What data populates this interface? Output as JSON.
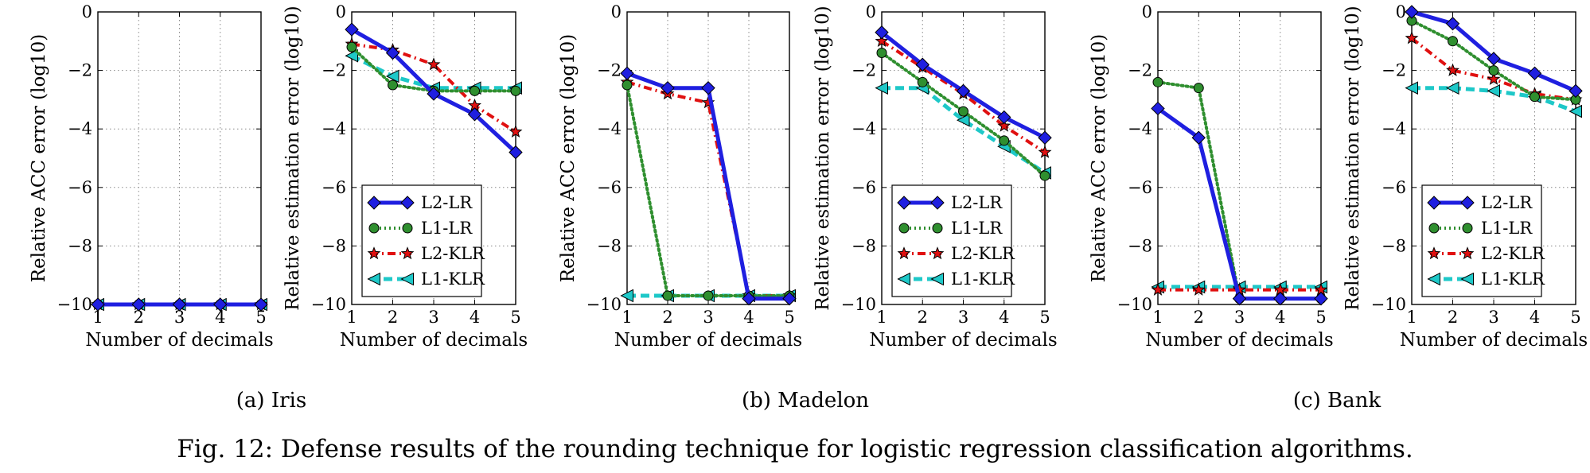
{
  "figure": {
    "caption": "Fig. 12: Defense results of the rounding technique for logistic regression classification algorithms.",
    "subcaptions": [
      "(a) Iris",
      "(b) Madelon",
      "(c) Bank"
    ]
  },
  "series_styles": [
    {
      "name": "L2-LR",
      "color": "#1f1fe0",
      "marker": "diamond",
      "dash": "solid"
    },
    {
      "name": "L1-LR",
      "color": "#2f8f2f",
      "marker": "circle",
      "dash": "dotted"
    },
    {
      "name": "L2-KLR",
      "color": "#e01010",
      "marker": "star",
      "dash": "dashdot"
    },
    {
      "name": "L1-KLR",
      "color": "#1ec8c8",
      "marker": "triangle-left",
      "dash": "dashed"
    }
  ],
  "chart_data": [
    {
      "type": "line",
      "xlabel": "Number of decimals",
      "ylabel": "Relative ACC error (log10)",
      "x": [
        1,
        2,
        3,
        4,
        5
      ],
      "xlim": [
        1,
        5
      ],
      "ylim": [
        -10,
        0
      ],
      "xticks": [
        "1",
        "2",
        "3",
        "4",
        "5"
      ],
      "yticks": [
        "0",
        "−2",
        "−4",
        "−6",
        "−8",
        "−10"
      ],
      "grid": true,
      "legend": "none",
      "series": [
        {
          "name": "L2-LR",
          "values": [
            -10,
            -10,
            -10,
            -10,
            -10
          ]
        },
        {
          "name": "L1-LR",
          "values": [
            -10,
            -10,
            -10,
            -10,
            -10
          ]
        },
        {
          "name": "L2-KLR",
          "values": [
            -10,
            -10,
            -10,
            -10,
            -10
          ]
        },
        {
          "name": "L1-KLR",
          "values": [
            -10,
            -10,
            -10,
            -10,
            -10
          ]
        }
      ]
    },
    {
      "type": "line",
      "xlabel": "Number of decimals",
      "ylabel": "Relative estimation error (log10)",
      "x": [
        1,
        2,
        3,
        4,
        5
      ],
      "xlim": [
        1,
        5
      ],
      "ylim": [
        -10,
        0
      ],
      "xticks": [
        "1",
        "2",
        "3",
        "4",
        "5"
      ],
      "yticks": [
        "0",
        "−2",
        "−4",
        "−6",
        "−8",
        "−10"
      ],
      "grid": true,
      "legend": "bottom-left",
      "series": [
        {
          "name": "L2-LR",
          "values": [
            -0.6,
            -1.4,
            -2.8,
            -3.5,
            -4.8
          ]
        },
        {
          "name": "L1-LR",
          "values": [
            -1.2,
            -2.5,
            -2.7,
            -2.7,
            -2.7
          ]
        },
        {
          "name": "L2-KLR",
          "values": [
            -1.1,
            -1.3,
            -1.8,
            -3.2,
            -4.1
          ]
        },
        {
          "name": "L1-KLR",
          "values": [
            -1.5,
            -2.2,
            -2.6,
            -2.6,
            -2.6
          ]
        }
      ]
    },
    {
      "type": "line",
      "xlabel": "Number of decimals",
      "ylabel": "Relative ACC error (log10)",
      "x": [
        1,
        2,
        3,
        4,
        5
      ],
      "xlim": [
        1,
        5
      ],
      "ylim": [
        -10,
        0
      ],
      "xticks": [
        "1",
        "2",
        "3",
        "4",
        "5"
      ],
      "yticks": [
        "0",
        "−2",
        "−4",
        "−6",
        "−8",
        "−10"
      ],
      "grid": true,
      "legend": "none",
      "series": [
        {
          "name": "L2-LR",
          "values": [
            -2.1,
            -2.6,
            -2.6,
            -9.8,
            -9.8
          ]
        },
        {
          "name": "L1-LR",
          "values": [
            -2.5,
            -9.7,
            -9.7,
            -9.7,
            -9.7
          ]
        },
        {
          "name": "L2-KLR",
          "values": [
            -2.4,
            -2.8,
            -3.1,
            -9.7,
            -9.7
          ]
        },
        {
          "name": "L1-KLR",
          "values": [
            -9.7,
            -9.7,
            -9.7,
            -9.7,
            -9.7
          ]
        }
      ]
    },
    {
      "type": "line",
      "xlabel": "Number of decimals",
      "ylabel": "Relative estimation error (log10)",
      "x": [
        1,
        2,
        3,
        4,
        5
      ],
      "xlim": [
        1,
        5
      ],
      "ylim": [
        -10,
        0
      ],
      "xticks": [
        "1",
        "2",
        "3",
        "4",
        "5"
      ],
      "yticks": [
        "0",
        "−2",
        "−4",
        "−6",
        "−8",
        "−10"
      ],
      "grid": true,
      "legend": "bottom-left",
      "series": [
        {
          "name": "L2-LR",
          "values": [
            -0.7,
            -1.8,
            -2.7,
            -3.6,
            -4.3
          ]
        },
        {
          "name": "L1-LR",
          "values": [
            -1.4,
            -2.4,
            -3.4,
            -4.4,
            -5.6
          ]
        },
        {
          "name": "L2-KLR",
          "values": [
            -1.0,
            -1.9,
            -2.8,
            -3.9,
            -4.8
          ]
        },
        {
          "name": "L1-KLR",
          "values": [
            -2.6,
            -2.6,
            -3.7,
            -4.6,
            -5.5
          ]
        }
      ]
    },
    {
      "type": "line",
      "xlabel": "Number of decimals",
      "ylabel": "Relative ACC error (log10)",
      "x": [
        1,
        2,
        3,
        4,
        5
      ],
      "xlim": [
        1,
        5
      ],
      "ylim": [
        -10,
        0
      ],
      "xticks": [
        "1",
        "2",
        "3",
        "4",
        "5"
      ],
      "yticks": [
        "0",
        "−2",
        "−4",
        "−6",
        "−8",
        "−10"
      ],
      "grid": true,
      "legend": "none",
      "series": [
        {
          "name": "L2-LR",
          "values": [
            -3.3,
            -4.3,
            -9.8,
            -9.8,
            -9.8
          ]
        },
        {
          "name": "L1-LR",
          "values": [
            -2.4,
            -2.6,
            -9.8,
            -9.8,
            -9.8
          ]
        },
        {
          "name": "L2-KLR",
          "values": [
            -9.5,
            -9.5,
            -9.5,
            -9.5,
            -9.5
          ]
        },
        {
          "name": "L1-KLR",
          "values": [
            -9.4,
            -9.4,
            -9.4,
            -9.4,
            -9.4
          ]
        }
      ]
    },
    {
      "type": "line",
      "xlabel": "Number of decimals",
      "ylabel": "Relative estimation error (log10)",
      "x": [
        1,
        2,
        3,
        4,
        5
      ],
      "xlim": [
        1,
        5
      ],
      "ylim": [
        -10,
        0
      ],
      "xticks": [
        "1",
        "2",
        "3",
        "4",
        "5"
      ],
      "yticks": [
        "0",
        "−2",
        "−4",
        "−6",
        "−8",
        "−10"
      ],
      "grid": true,
      "legend": "bottom-left",
      "series": [
        {
          "name": "L2-LR",
          "values": [
            0,
            -0.4,
            -1.6,
            -2.1,
            -2.7
          ]
        },
        {
          "name": "L1-LR",
          "values": [
            -0.3,
            -1.0,
            -2.0,
            -2.9,
            -3.0
          ]
        },
        {
          "name": "L2-KLR",
          "values": [
            -0.9,
            -2.0,
            -2.3,
            -2.8,
            -3.0
          ]
        },
        {
          "name": "L1-KLR",
          "values": [
            -2.6,
            -2.6,
            -2.7,
            -2.9,
            -3.4
          ]
        }
      ]
    }
  ]
}
